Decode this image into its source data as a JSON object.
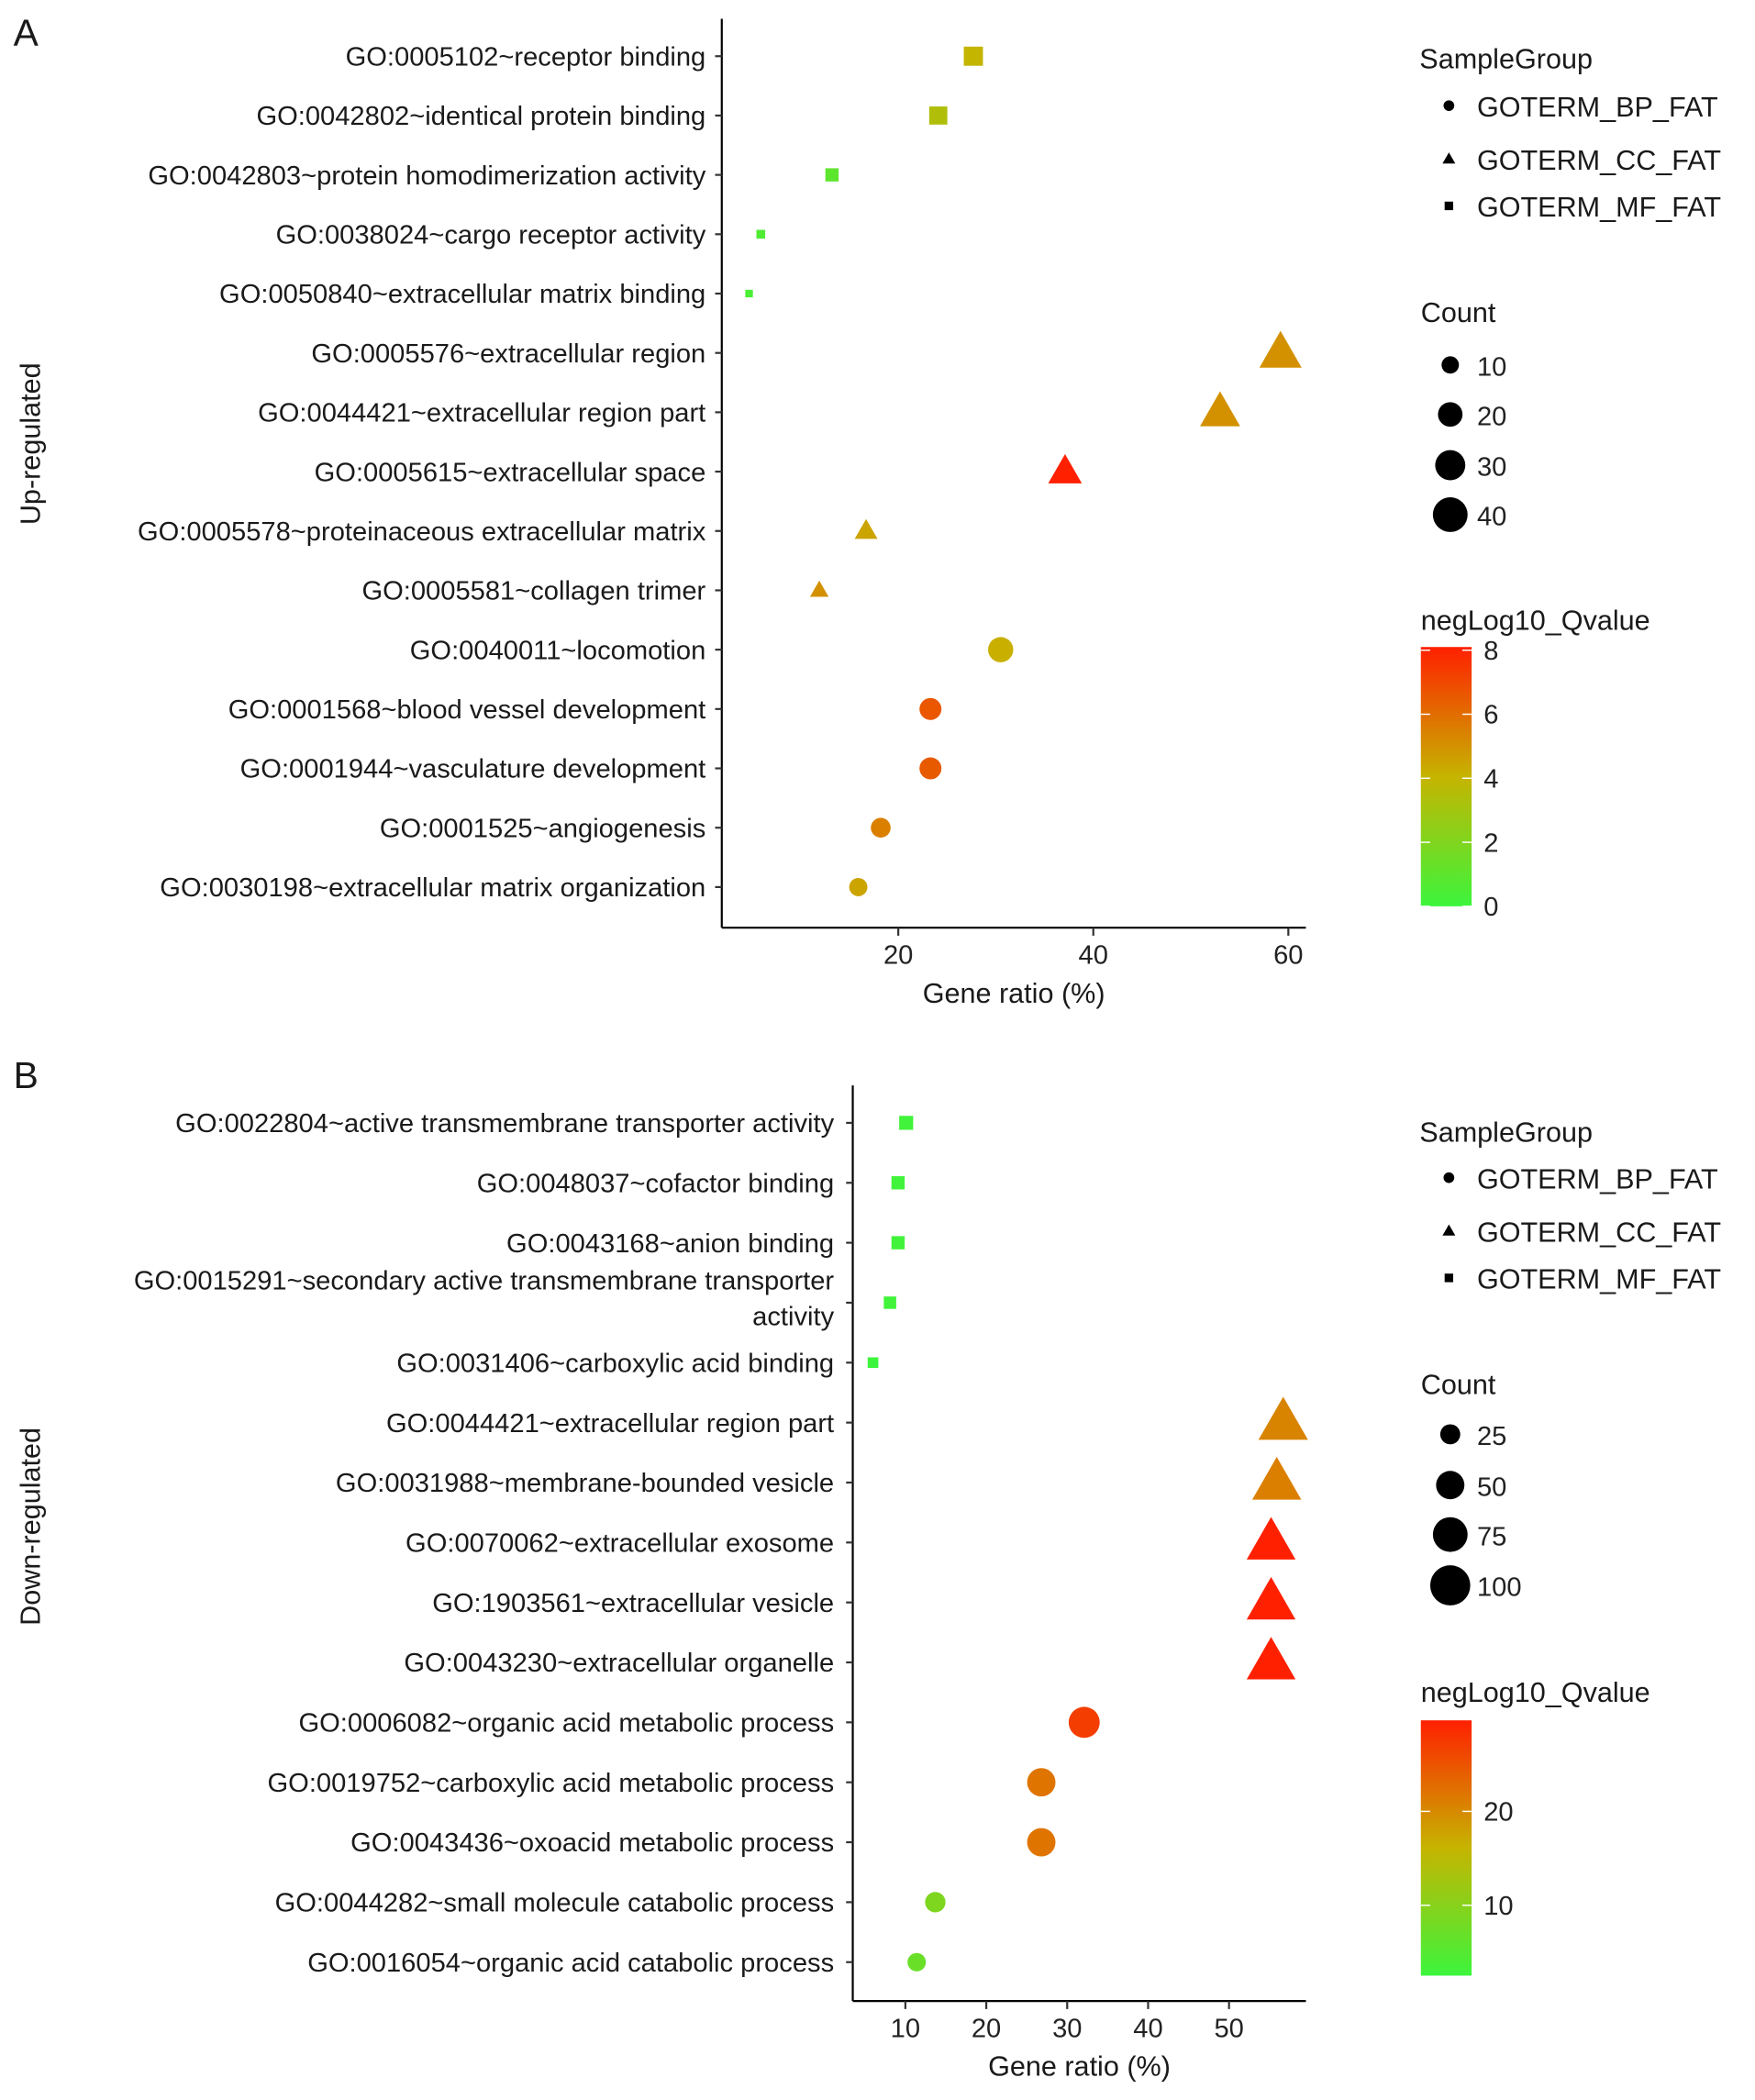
{
  "colors": {
    "low": "#3cf53c",
    "mid": "#c6b400",
    "high": "#ff2000",
    "axis": "#000000"
  },
  "chart_data": [
    {
      "type": "scatter",
      "panel_label": "A",
      "ylabel": "Up-regulated",
      "xlabel": "Gene ratio (%)",
      "xlim": [
        1.9,
        61.8
      ],
      "xticks": [
        20,
        40,
        60
      ],
      "grid": false,
      "legend_placement": "right",
      "shape_legend": {
        "title": "SampleGroup",
        "entries": [
          {
            "label": "GOTERM_BP_FAT",
            "shape": "circle"
          },
          {
            "label": "GOTERM_CC_FAT",
            "shape": "triangle"
          },
          {
            "label": "GOTERM_MF_FAT",
            "shape": "square"
          }
        ]
      },
      "size_legend": {
        "title": "Count",
        "values": [
          10,
          20,
          30,
          40
        ],
        "max": 40
      },
      "color_legend": {
        "title": "negLog10_Qvalue",
        "range": [
          0,
          8.1
        ],
        "ticks": [
          0,
          2,
          4,
          6,
          8
        ]
      },
      "points": [
        {
          "term": "GO:0005102~receptor binding",
          "group": "GOTERM_MF_FAT",
          "ratio": 27.7,
          "count": 19,
          "q": 4.0
        },
        {
          "term": "GO:0042802~identical protein binding",
          "group": "GOTERM_MF_FAT",
          "ratio": 24.1,
          "count": 17,
          "q": 3.4
        },
        {
          "term": "GO:0042803~protein homodimerization activity",
          "group": "GOTERM_MF_FAT",
          "ratio": 13.2,
          "count": 9,
          "q": 1.0
        },
        {
          "term": "GO:0038024~cargo receptor activity",
          "group": "GOTERM_MF_FAT",
          "ratio": 5.9,
          "count": 4,
          "q": 0.6
        },
        {
          "term": "GO:0050840~extracellular matrix binding",
          "group": "GOTERM_MF_FAT",
          "ratio": 4.7,
          "count": 3,
          "q": 0.4
        },
        {
          "term": "GO:0005576~extracellular region",
          "group": "GOTERM_CC_FAT",
          "ratio": 59.2,
          "count": 41,
          "q": 5.0
        },
        {
          "term": "GO:0044421~extracellular region part",
          "group": "GOTERM_CC_FAT",
          "ratio": 53.0,
          "count": 37,
          "q": 5.0
        },
        {
          "term": "GO:0005615~extracellular space",
          "group": "GOTERM_CC_FAT",
          "ratio": 37.1,
          "count": 26,
          "q": 8.1
        },
        {
          "term": "GO:0005578~proteinaceous extracellular matrix",
          "group": "GOTERM_CC_FAT",
          "ratio": 16.7,
          "count": 12,
          "q": 4.5
        },
        {
          "term": "GO:0005581~collagen trimer",
          "group": "GOTERM_CC_FAT",
          "ratio": 11.9,
          "count": 8,
          "q": 5.0
        },
        {
          "term": "GO:0040011~locomotion",
          "group": "GOTERM_BP_FAT",
          "ratio": 30.5,
          "count": 21,
          "q": 4.2
        },
        {
          "term": "GO:0001568~blood vessel development",
          "group": "GOTERM_BP_FAT",
          "ratio": 23.3,
          "count": 16,
          "q": 6.6
        },
        {
          "term": "GO:0001944~vasculature development",
          "group": "GOTERM_BP_FAT",
          "ratio": 23.3,
          "count": 16,
          "q": 6.5
        },
        {
          "term": "GO:0001525~angiogenesis",
          "group": "GOTERM_BP_FAT",
          "ratio": 18.2,
          "count": 13,
          "q": 5.5
        },
        {
          "term": "GO:0030198~extracellular matrix organization",
          "group": "GOTERM_BP_FAT",
          "ratio": 15.9,
          "count": 11,
          "q": 4.5
        }
      ]
    },
    {
      "type": "scatter",
      "panel_label": "B",
      "ylabel": "Down-regulated",
      "xlabel": "Gene ratio (%)",
      "xlim": [
        3.5,
        59.5
      ],
      "xticks": [
        10,
        20,
        30,
        40,
        50
      ],
      "grid": false,
      "legend_placement": "right",
      "shape_legend": {
        "title": "SampleGroup",
        "entries": [
          {
            "label": "GOTERM_BP_FAT",
            "shape": "circle"
          },
          {
            "label": "GOTERM_CC_FAT",
            "shape": "triangle"
          },
          {
            "label": "GOTERM_MF_FAT",
            "shape": "square"
          }
        ]
      },
      "size_legend": {
        "title": "Count",
        "values": [
          25,
          50,
          75,
          100
        ],
        "max": 100
      },
      "color_legend": {
        "title": "negLog10_Qvalue",
        "range": [
          2.5,
          29.7
        ],
        "ticks": [
          10,
          20
        ]
      },
      "points": [
        {
          "term": "GO:0022804~active transmembrane transporter activity",
          "group": "GOTERM_MF_FAT",
          "ratio": 10.1,
          "count": 19,
          "q": 3.0
        },
        {
          "term": "GO:0048037~cofactor binding",
          "group": "GOTERM_MF_FAT",
          "ratio": 9.1,
          "count": 17,
          "q": 3.0
        },
        {
          "term": "GO:0043168~anion binding",
          "group": "GOTERM_MF_FAT",
          "ratio": 9.1,
          "count": 17,
          "q": 3.0
        },
        {
          "term": "GO:0015291~secondary active transmembrane transporter activity",
          "group": "GOTERM_MF_FAT",
          "ratio": 8.1,
          "count": 15,
          "q": 3.0
        },
        {
          "term": "GO:0031406~carboxylic acid binding",
          "group": "GOTERM_MF_FAT",
          "ratio": 6.0,
          "count": 11,
          "q": 2.6
        },
        {
          "term": "GO:0044421~extracellular region part",
          "group": "GOTERM_CC_FAT",
          "ratio": 56.7,
          "count": 106,
          "q": 20.5
        },
        {
          "term": "GO:0031988~membrane-bounded vesicle",
          "group": "GOTERM_CC_FAT",
          "ratio": 55.9,
          "count": 104,
          "q": 21.0
        },
        {
          "term": "GO:0070062~extracellular exosome",
          "group": "GOTERM_CC_FAT",
          "ratio": 55.2,
          "count": 103,
          "q": 29.7
        },
        {
          "term": "GO:1903561~extracellular vesicle",
          "group": "GOTERM_CC_FAT",
          "ratio": 55.2,
          "count": 103,
          "q": 29.7
        },
        {
          "term": "GO:0043230~extracellular organelle",
          "group": "GOTERM_CC_FAT",
          "ratio": 55.2,
          "count": 103,
          "q": 29.7
        },
        {
          "term": "GO:0006082~organic acid metabolic process",
          "group": "GOTERM_BP_FAT",
          "ratio": 32.1,
          "count": 60,
          "q": 27.0
        },
        {
          "term": "GO:0019752~carboxylic acid metabolic process",
          "group": "GOTERM_BP_FAT",
          "ratio": 26.8,
          "count": 50,
          "q": 22.0
        },
        {
          "term": "GO:0043436~oxoacid metabolic process",
          "group": "GOTERM_BP_FAT",
          "ratio": 26.8,
          "count": 50,
          "q": 22.0
        },
        {
          "term": "GO:0044282~small molecule catabolic process",
          "group": "GOTERM_BP_FAT",
          "ratio": 13.7,
          "count": 26,
          "q": 9.0
        },
        {
          "term": "GO:0016054~organic acid catabolic process",
          "group": "GOTERM_BP_FAT",
          "ratio": 11.4,
          "count": 21,
          "q": 7.0
        }
      ]
    }
  ]
}
